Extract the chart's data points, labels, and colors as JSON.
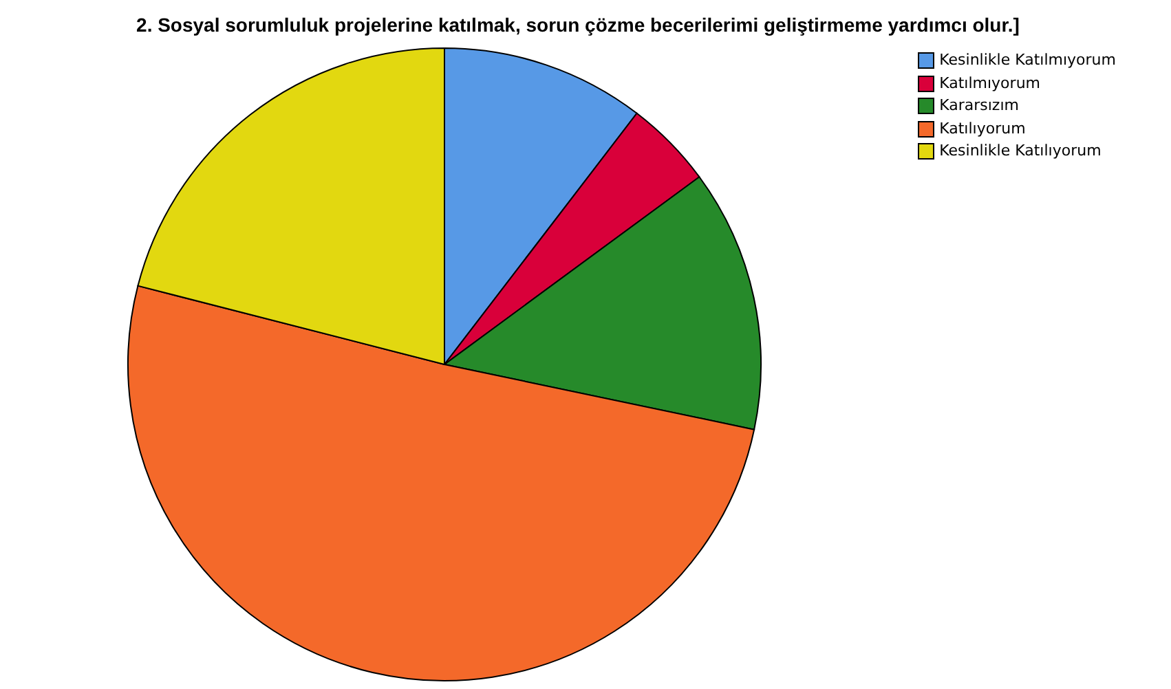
{
  "chart_data": {
    "type": "pie",
    "title": "2. Sosyal sorumluluk projelerine katılmak, sorun çözme becerilerimi geliştirmeme yardımcı olur.]",
    "categories": [
      "Kesinlikle Katılmıyorum",
      "Katılmıyorum",
      "Kararsızım",
      "Katılıyorum",
      "Kesinlikle Katılıyorum"
    ],
    "values": [
      10.4,
      4.5,
      13.4,
      50.7,
      21.0
    ],
    "colors": [
      "#5799e6",
      "#d9003a",
      "#268a2a",
      "#f4692a",
      "#e2d810"
    ],
    "legend": "top right"
  }
}
